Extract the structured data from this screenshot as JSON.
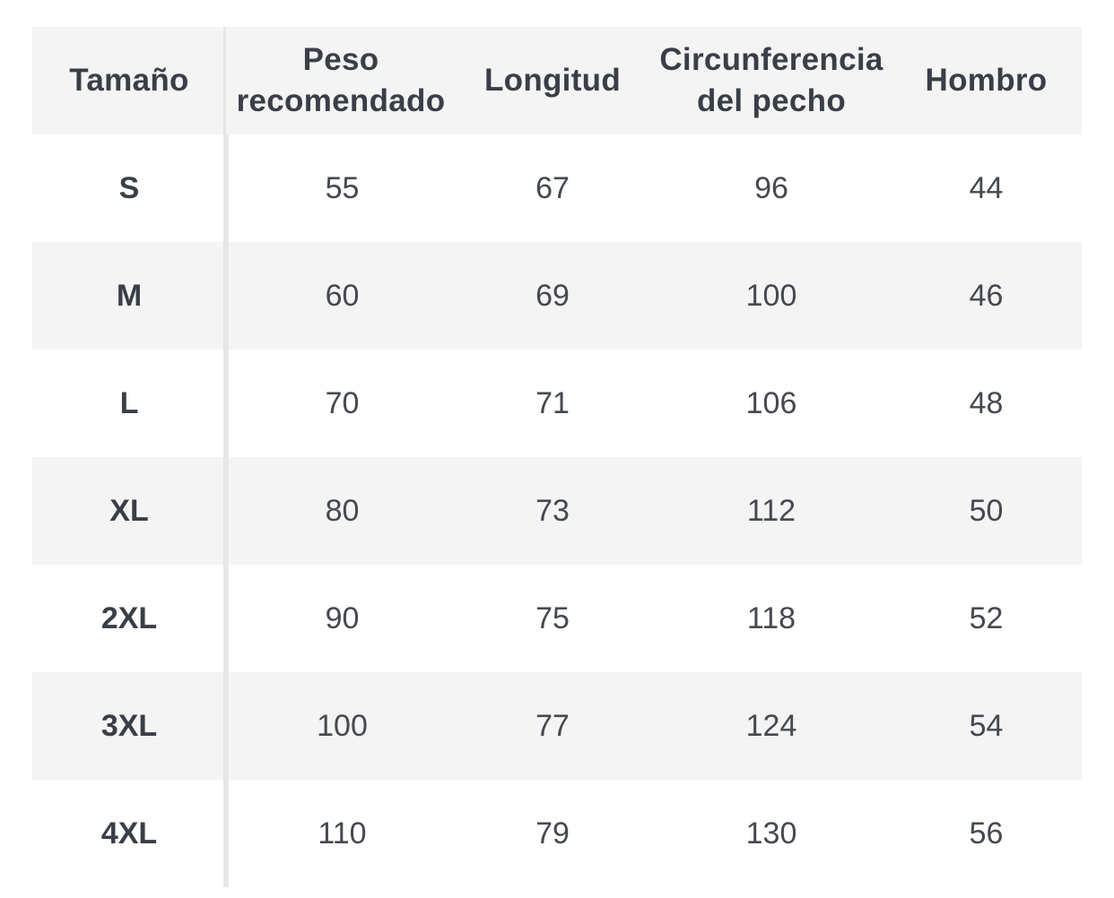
{
  "table": {
    "headers": [
      "Tamaño",
      "Peso\nrecomendado",
      "Longitud",
      "Circunferencia\ndel pecho",
      "Hombro"
    ],
    "rows": [
      [
        "S",
        "55",
        "67",
        "96",
        "44"
      ],
      [
        "M",
        "60",
        "69",
        "100",
        "46"
      ],
      [
        "L",
        "70",
        "71",
        "106",
        "48"
      ],
      [
        "XL",
        "80",
        "73",
        "112",
        "50"
      ],
      [
        "2XL",
        "90",
        "75",
        "118",
        "52"
      ],
      [
        "3XL",
        "100",
        "77",
        "124",
        "54"
      ],
      [
        "4XL",
        "110",
        "79",
        "130",
        "56"
      ]
    ]
  },
  "colors": {
    "header_background": "#f4f4f5",
    "shaded_row_background": "#f4f4f5",
    "text": "#3c4049",
    "divider": "#e6e6e8"
  }
}
